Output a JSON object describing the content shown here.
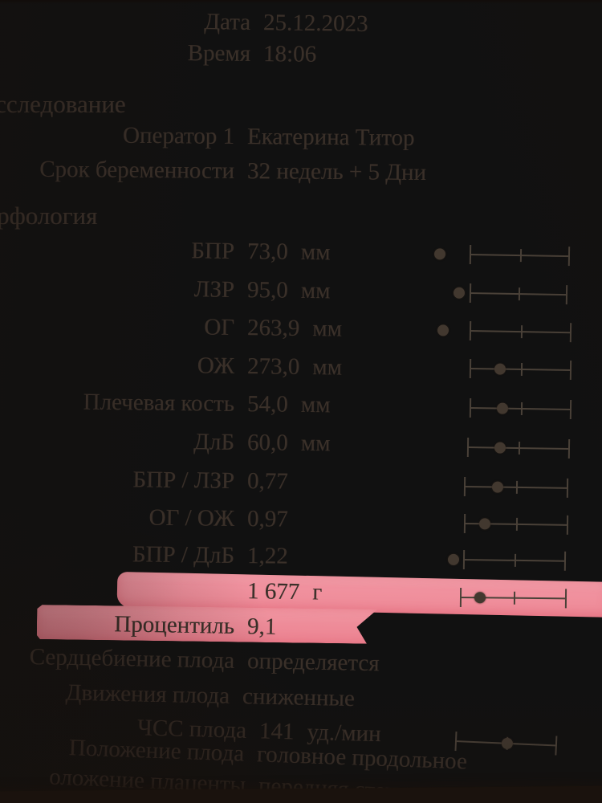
{
  "page": {
    "date": {
      "label": "Дата",
      "value": "25.12.2023"
    },
    "time": {
      "label": "Время",
      "value": "18:06"
    },
    "section_study": "сследование",
    "operator": {
      "label": "Оператор 1",
      "value": "Екатерина Титор"
    },
    "gestation": {
      "label": "Срок беременности",
      "value": "32 недель + 5 Дни"
    },
    "section_morphology": "рфология",
    "rows": [
      {
        "label": "БПР",
        "value": "73,0",
        "unit": "мм",
        "marker": -0.3
      },
      {
        "label": "ЛЗР",
        "value": "95,0",
        "unit": "мм",
        "marker": -0.11
      },
      {
        "label": "ОГ",
        "value": "263,9",
        "unit": "мм",
        "marker": -0.26
      },
      {
        "label": "ОЖ",
        "value": "273,0",
        "unit": "мм",
        "marker": 0.3
      },
      {
        "label": "Плечевая кость",
        "value": "54,0",
        "unit": "мм",
        "marker": 0.32
      },
      {
        "label": "ДлБ",
        "value": "60,0",
        "unit": "мм",
        "marker": 0.32
      },
      {
        "label": "БПР / ЛЗР",
        "value": "0,77",
        "marker": 0.32
      },
      {
        "label": "ОГ / ОЖ",
        "value": "0,97",
        "marker": 0.2
      },
      {
        "label": "БПР / ДлБ",
        "value": "1,22",
        "marker": -0.09
      },
      {
        "label": "",
        "value": "1 677",
        "unit": "г",
        "marker": 0.19,
        "highlight": true
      },
      {
        "label": "Процентиль",
        "value": "9,1",
        "highlight": true
      },
      {
        "label": "Сердцебиение плода",
        "value": "определяется"
      },
      {
        "label": "Движения плода",
        "value": "сниженные"
      },
      {
        "label": "ЧСС плода",
        "value": "141",
        "unit": "уд./мин",
        "marker": 0.51
      },
      {
        "label": "Положение плода",
        "value": "головное продольное"
      },
      {
        "label": "оложение плаценты",
        "value": "передняя стенка"
      }
    ],
    "partial_bottom_text": "О",
    "colors": {
      "highlight": "#ef8f9c",
      "ink": "#3a3029",
      "paper": "#cfc7bb"
    }
  }
}
